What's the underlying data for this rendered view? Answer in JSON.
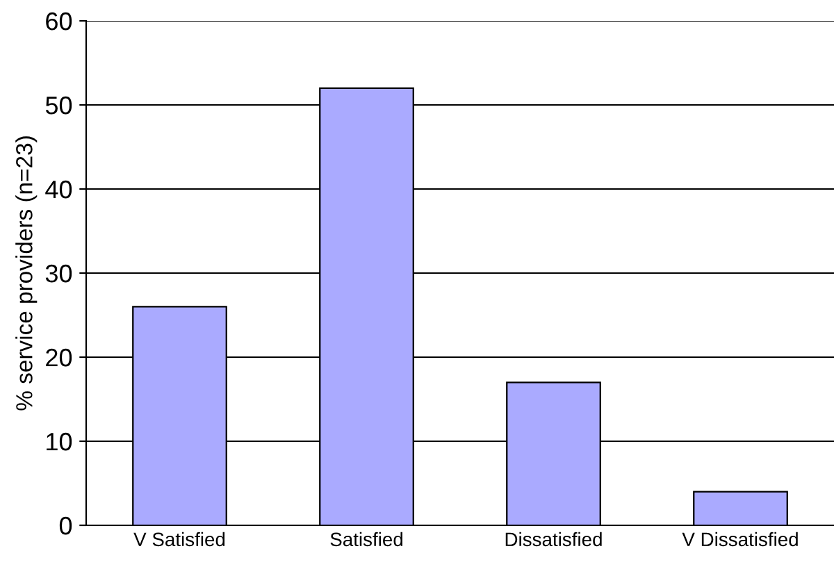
{
  "chart_data": {
    "type": "bar",
    "ylabel": "% service providers (n=23)",
    "categories": [
      "V Satisfied",
      "Satisfied",
      "Dissatisfied",
      "V Dissatisfied"
    ],
    "values": [
      26,
      52,
      17,
      4
    ],
    "color": "#aaaaff",
    "ylim": [
      0,
      60
    ],
    "yticks": [
      0,
      10,
      20,
      30,
      40,
      50,
      60
    ],
    "grid": "y"
  }
}
